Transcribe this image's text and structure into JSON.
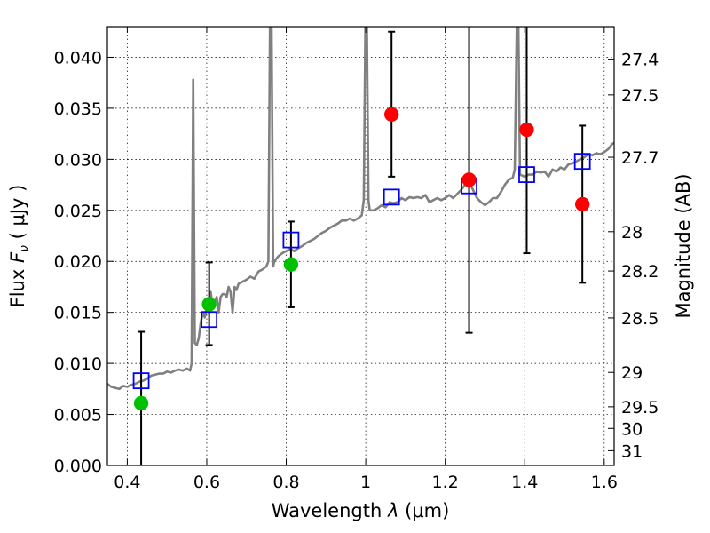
{
  "chart_data": {
    "type": "scatter",
    "title": "",
    "xlabel": "Wavelength",
    "xlabel_symbol": "λ",
    "xlabel_unit": "(μm)",
    "ylabel": "Flux",
    "ylabel_symbol": "F",
    "ylabel_subscript": "ν",
    "ylabel_unit": "( μJy )",
    "y2label": "Magnitude (AB)",
    "xlim": [
      0.35,
      1.625
    ],
    "ylim": [
      0.0,
      0.043
    ],
    "grid": true,
    "x_ticks": [
      {
        "value": 0.4,
        "label": "0.4"
      },
      {
        "value": 0.6,
        "label": "0.6"
      },
      {
        "value": 0.8,
        "label": "0.8"
      },
      {
        "value": 1.0,
        "label": "1"
      },
      {
        "value": 1.2,
        "label": "1.2"
      },
      {
        "value": 1.4,
        "label": "1.4"
      },
      {
        "value": 1.6,
        "label": "1.6"
      }
    ],
    "y_ticks": [
      {
        "value": 0.0,
        "label": "0.000"
      },
      {
        "value": 0.005,
        "label": "0.005"
      },
      {
        "value": 0.01,
        "label": "0.010"
      },
      {
        "value": 0.015,
        "label": "0.015"
      },
      {
        "value": 0.02,
        "label": "0.020"
      },
      {
        "value": 0.025,
        "label": "0.025"
      },
      {
        "value": 0.03,
        "label": "0.030"
      },
      {
        "value": 0.035,
        "label": "0.035"
      },
      {
        "value": 0.04,
        "label": "0.040"
      }
    ],
    "y2_ticks": [
      {
        "magnitude": 27.4,
        "label": "27.4"
      },
      {
        "magnitude": 27.5,
        "label": "27.5"
      },
      {
        "magnitude": 27.7,
        "label": "27.7"
      },
      {
        "magnitude": 28.0,
        "label": "28"
      },
      {
        "magnitude": 28.2,
        "label": "28.2"
      },
      {
        "magnitude": 28.5,
        "label": "28.5"
      },
      {
        "magnitude": 29.0,
        "label": "29"
      },
      {
        "magnitude": 29.5,
        "label": "29.5"
      },
      {
        "magnitude": 30.0,
        "label": "30"
      },
      {
        "magnitude": 31.0,
        "label": "31"
      }
    ],
    "series": [
      {
        "kind": "line",
        "color": "#808080",
        "points": [
          [
            0.35,
            0.008
          ],
          [
            0.36,
            0.0077
          ],
          [
            0.37,
            0.0076
          ],
          [
            0.38,
            0.0075
          ],
          [
            0.39,
            0.0078
          ],
          [
            0.4,
            0.0077
          ],
          [
            0.41,
            0.0079
          ],
          [
            0.42,
            0.008
          ],
          [
            0.43,
            0.0082
          ],
          [
            0.44,
            0.0083
          ],
          [
            0.45,
            0.0085
          ],
          [
            0.46,
            0.0088
          ],
          [
            0.47,
            0.0089
          ],
          [
            0.48,
            0.009
          ],
          [
            0.49,
            0.009
          ],
          [
            0.5,
            0.0092
          ],
          [
            0.51,
            0.0091
          ],
          [
            0.52,
            0.0093
          ],
          [
            0.53,
            0.0094
          ],
          [
            0.54,
            0.0093
          ],
          [
            0.55,
            0.0095
          ],
          [
            0.558,
            0.0093
          ],
          [
            0.562,
            0.01
          ],
          [
            0.566,
            0.0378
          ],
          [
            0.57,
            0.012
          ],
          [
            0.575,
            0.0118
          ],
          [
            0.58,
            0.0125
          ],
          [
            0.585,
            0.014
          ],
          [
            0.59,
            0.015
          ],
          [
            0.595,
            0.0145
          ],
          [
            0.6,
            0.0155
          ],
          [
            0.605,
            0.015
          ],
          [
            0.61,
            0.017
          ],
          [
            0.615,
            0.0155
          ],
          [
            0.62,
            0.016
          ],
          [
            0.625,
            0.0165
          ],
          [
            0.63,
            0.015
          ],
          [
            0.635,
            0.0165
          ],
          [
            0.64,
            0.0168
          ],
          [
            0.645,
            0.0168
          ],
          [
            0.65,
            0.0165
          ],
          [
            0.655,
            0.0175
          ],
          [
            0.66,
            0.017
          ],
          [
            0.665,
            0.015
          ],
          [
            0.67,
            0.0175
          ],
          [
            0.675,
            0.0172
          ],
          [
            0.68,
            0.0178
          ],
          [
            0.69,
            0.018
          ],
          [
            0.7,
            0.0182
          ],
          [
            0.71,
            0.0185
          ],
          [
            0.72,
            0.0183
          ],
          [
            0.73,
            0.019
          ],
          [
            0.74,
            0.0192
          ],
          [
            0.75,
            0.0195
          ],
          [
            0.755,
            0.02
          ],
          [
            0.759,
            0.043
          ],
          [
            0.763,
            0.043
          ],
          [
            0.767,
            0.0195
          ],
          [
            0.77,
            0.02
          ],
          [
            0.78,
            0.0205
          ],
          [
            0.79,
            0.0208
          ],
          [
            0.8,
            0.021
          ],
          [
            0.81,
            0.0212
          ],
          [
            0.82,
            0.021
          ],
          [
            0.83,
            0.0213
          ],
          [
            0.84,
            0.0215
          ],
          [
            0.85,
            0.0218
          ],
          [
            0.86,
            0.022
          ],
          [
            0.87,
            0.0222
          ],
          [
            0.88,
            0.0225
          ],
          [
            0.89,
            0.0228
          ],
          [
            0.9,
            0.023
          ],
          [
            0.91,
            0.0233
          ],
          [
            0.92,
            0.0235
          ],
          [
            0.93,
            0.0237
          ],
          [
            0.94,
            0.024
          ],
          [
            0.95,
            0.024
          ],
          [
            0.96,
            0.0242
          ],
          [
            0.97,
            0.024
          ],
          [
            0.98,
            0.0242
          ],
          [
            0.99,
            0.0245
          ],
          [
            0.995,
            0.026
          ],
          [
            0.999,
            0.043
          ],
          [
            1.003,
            0.043
          ],
          [
            1.007,
            0.026
          ],
          [
            1.01,
            0.025
          ],
          [
            1.02,
            0.025
          ],
          [
            1.03,
            0.0252
          ],
          [
            1.04,
            0.0255
          ],
          [
            1.05,
            0.0253
          ],
          [
            1.06,
            0.0258
          ],
          [
            1.07,
            0.0257
          ],
          [
            1.08,
            0.0258
          ],
          [
            1.09,
            0.0262
          ],
          [
            1.1,
            0.026
          ],
          [
            1.11,
            0.0263
          ],
          [
            1.12,
            0.0262
          ],
          [
            1.13,
            0.0263
          ],
          [
            1.14,
            0.0262
          ],
          [
            1.15,
            0.0265
          ],
          [
            1.16,
            0.0258
          ],
          [
            1.17,
            0.026
          ],
          [
            1.18,
            0.0262
          ],
          [
            1.19,
            0.026
          ],
          [
            1.2,
            0.0262
          ],
          [
            1.21,
            0.0265
          ],
          [
            1.22,
            0.0262
          ],
          [
            1.23,
            0.0266
          ],
          [
            1.24,
            0.027
          ],
          [
            1.25,
            0.0275
          ],
          [
            1.26,
            0.0278
          ],
          [
            1.27,
            0.027
          ],
          [
            1.28,
            0.0262
          ],
          [
            1.29,
            0.0258
          ],
          [
            1.3,
            0.0255
          ],
          [
            1.31,
            0.0258
          ],
          [
            1.32,
            0.0262
          ],
          [
            1.33,
            0.0262
          ],
          [
            1.34,
            0.0268
          ],
          [
            1.35,
            0.0275
          ],
          [
            1.36,
            0.028
          ],
          [
            1.37,
            0.0282
          ],
          [
            1.375,
            0.029
          ],
          [
            1.38,
            0.043
          ],
          [
            1.384,
            0.043
          ],
          [
            1.388,
            0.0285
          ],
          [
            1.4,
            0.0283
          ],
          [
            1.41,
            0.0285
          ],
          [
            1.42,
            0.0285
          ],
          [
            1.43,
            0.0288
          ],
          [
            1.44,
            0.0287
          ],
          [
            1.45,
            0.0288
          ],
          [
            1.46,
            0.0283
          ],
          [
            1.47,
            0.029
          ],
          [
            1.48,
            0.0288
          ],
          [
            1.49,
            0.0292
          ],
          [
            1.5,
            0.029
          ],
          [
            1.51,
            0.0295
          ],
          [
            1.52,
            0.0296
          ],
          [
            1.53,
            0.0298
          ],
          [
            1.54,
            0.03
          ],
          [
            1.55,
            0.0302
          ],
          [
            1.56,
            0.0305
          ],
          [
            1.57,
            0.0304
          ],
          [
            1.58,
            0.0306
          ],
          [
            1.59,
            0.0305
          ],
          [
            1.6,
            0.0307
          ],
          [
            1.61,
            0.031
          ],
          [
            1.62,
            0.0315
          ],
          [
            1.625,
            0.0316
          ]
        ]
      },
      {
        "kind": "open-square",
        "color": "#0000ff",
        "points": [
          [
            0.435,
            0.0083
          ],
          [
            0.606,
            0.0143
          ],
          [
            0.812,
            0.0221
          ],
          [
            1.065,
            0.0263
          ],
          [
            1.26,
            0.0274
          ],
          [
            1.405,
            0.0285
          ],
          [
            1.545,
            0.0298
          ]
        ]
      },
      {
        "kind": "filled-circle",
        "color": "#00c000",
        "points": [
          [
            0.435,
            0.0061
          ],
          [
            0.606,
            0.0158
          ],
          [
            0.812,
            0.0197
          ]
        ]
      },
      {
        "kind": "filled-circle",
        "color": "#ff0000",
        "points": [
          [
            1.065,
            0.0344
          ],
          [
            1.26,
            0.028
          ],
          [
            1.405,
            0.0329
          ],
          [
            1.545,
            0.0256
          ]
        ]
      },
      {
        "kind": "errorbar",
        "color": "#000000",
        "bars": [
          {
            "x": 0.435,
            "y_low": 0.0,
            "y_high": 0.0131,
            "cap_low": false,
            "cap_high": true
          },
          {
            "x": 0.606,
            "y_low": 0.0118,
            "y_high": 0.0199,
            "cap_low": true,
            "cap_high": true
          },
          {
            "x": 0.812,
            "y_low": 0.0155,
            "y_high": 0.0239,
            "cap_low": true,
            "cap_high": true
          },
          {
            "x": 1.065,
            "y_low": 0.0283,
            "y_high": 0.0425,
            "cap_low": true,
            "cap_high": true
          },
          {
            "x": 1.26,
            "y_low": 0.013,
            "y_high": 0.043,
            "cap_low": true,
            "cap_high": false
          },
          {
            "x": 1.405,
            "y_low": 0.0208,
            "y_high": 0.043,
            "cap_low": true,
            "cap_high": false
          },
          {
            "x": 1.545,
            "y_low": 0.0179,
            "y_high": 0.0333,
            "cap_low": true,
            "cap_high": true
          }
        ]
      }
    ]
  }
}
